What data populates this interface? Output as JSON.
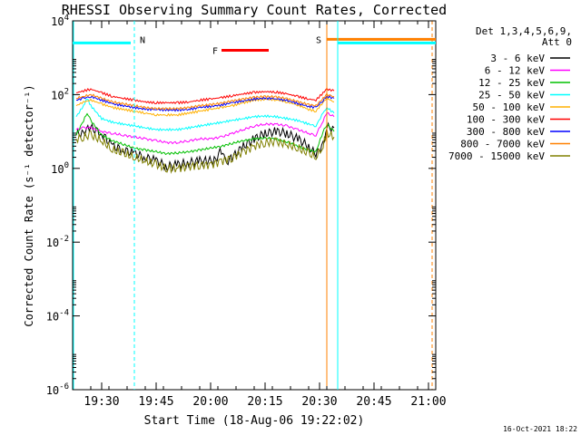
{
  "chart_data": {
    "type": "line",
    "title": "RHESSI Observing Summary Count Rates, Corrected",
    "xlabel": "Start Time (18-Aug-06 19:22:02)",
    "ylabel": "Corrected Count Rate (s⁻¹ detector⁻¹)",
    "y_scale": "log",
    "ylim_log10": [
      -6,
      4
    ],
    "y_ticks": [
      {
        "exp": 4,
        "base": "10",
        "sup": "4"
      },
      {
        "exp": 2,
        "base": "10",
        "sup": "2"
      },
      {
        "exp": 0,
        "base": "10",
        "sup": "0"
      },
      {
        "exp": -2,
        "base": "10",
        "sup": "-2"
      },
      {
        "exp": -4,
        "base": "10",
        "sup": "-4"
      },
      {
        "exp": -6,
        "base": "10",
        "sup": "-6"
      }
    ],
    "xlim_min": [
      1162,
      1262
    ],
    "x_ticks": [
      {
        "min": 1170,
        "label": "19:30"
      },
      {
        "min": 1185,
        "label": "19:45"
      },
      {
        "min": 1200,
        "label": "20:00"
      },
      {
        "min": 1215,
        "label": "20:15"
      },
      {
        "min": 1230,
        "label": "20:30"
      },
      {
        "min": 1245,
        "label": "20:45"
      },
      {
        "min": 1260,
        "label": "21:00"
      }
    ],
    "legend_header": [
      "Det 1,3,4,5,6,9,",
      "Att 0"
    ],
    "series": [
      {
        "name": "3 - 6 keV",
        "color": "#000000",
        "points": [
          [
            1163,
            0.9
          ],
          [
            1165,
            1.0
          ],
          [
            1167,
            1.1
          ],
          [
            1170,
            0.95
          ],
          [
            1173,
            0.6
          ],
          [
            1176,
            0.5
          ],
          [
            1179,
            0.4
          ],
          [
            1182,
            0.3
          ],
          [
            1185,
            0.2
          ],
          [
            1188,
            0.05
          ],
          [
            1191,
            0.1
          ],
          [
            1194,
            0.15
          ],
          [
            1197,
            0.2
          ],
          [
            1199,
            0.2
          ],
          [
            1201,
            0.2
          ],
          [
            1203,
            0.5
          ],
          [
            1204,
            0.15
          ],
          [
            1206,
            0.3
          ],
          [
            1209,
            0.6
          ],
          [
            1212,
            0.8
          ],
          [
            1215,
            0.95
          ],
          [
            1218,
            1.0
          ],
          [
            1221,
            0.95
          ],
          [
            1224,
            0.8
          ],
          [
            1227,
            0.6
          ],
          [
            1229,
            0.35
          ],
          [
            1231,
            0.7
          ],
          [
            1232,
            1.1
          ],
          [
            1234,
            1.1
          ]
        ]
      },
      {
        "name": "6 - 12 keV",
        "color": "#ff00ff",
        "points": [
          [
            1163,
            1.05
          ],
          [
            1165,
            1.1
          ],
          [
            1167,
            1.1
          ],
          [
            1170,
            1.0
          ],
          [
            1173,
            0.95
          ],
          [
            1176,
            0.9
          ],
          [
            1179,
            0.85
          ],
          [
            1182,
            0.8
          ],
          [
            1185,
            0.75
          ],
          [
            1188,
            0.7
          ],
          [
            1191,
            0.7
          ],
          [
            1194,
            0.75
          ],
          [
            1197,
            0.8
          ],
          [
            1200,
            0.8
          ],
          [
            1203,
            0.85
          ],
          [
            1206,
            0.95
          ],
          [
            1209,
            1.05
          ],
          [
            1212,
            1.15
          ],
          [
            1215,
            1.2
          ],
          [
            1218,
            1.2
          ],
          [
            1221,
            1.15
          ],
          [
            1224,
            1.05
          ],
          [
            1227,
            0.95
          ],
          [
            1229,
            0.9
          ],
          [
            1231,
            1.3
          ],
          [
            1232,
            1.5
          ],
          [
            1234,
            1.4
          ]
        ]
      },
      {
        "name": "12 - 25 keV",
        "color": "#00c000",
        "points": [
          [
            1163,
            0.9
          ],
          [
            1165,
            1.3
          ],
          [
            1166,
            1.5
          ],
          [
            1167,
            1.3
          ],
          [
            1170,
            0.9
          ],
          [
            1173,
            0.75
          ],
          [
            1176,
            0.65
          ],
          [
            1179,
            0.55
          ],
          [
            1182,
            0.5
          ],
          [
            1185,
            0.45
          ],
          [
            1188,
            0.4
          ],
          [
            1191,
            0.42
          ],
          [
            1194,
            0.45
          ],
          [
            1197,
            0.5
          ],
          [
            1200,
            0.55
          ],
          [
            1203,
            0.6
          ],
          [
            1206,
            0.68
          ],
          [
            1209,
            0.75
          ],
          [
            1212,
            0.8
          ],
          [
            1215,
            0.82
          ],
          [
            1218,
            0.8
          ],
          [
            1221,
            0.72
          ],
          [
            1224,
            0.6
          ],
          [
            1227,
            0.5
          ],
          [
            1229,
            0.45
          ],
          [
            1231,
            1.0
          ],
          [
            1232,
            1.2
          ],
          [
            1234,
            1.0
          ]
        ]
      },
      {
        "name": "25 - 50 keV",
        "color": "#00ffff",
        "points": [
          [
            1163,
            1.4
          ],
          [
            1165,
            1.7
          ],
          [
            1166,
            1.9
          ],
          [
            1167,
            1.7
          ],
          [
            1170,
            1.35
          ],
          [
            1173,
            1.25
          ],
          [
            1176,
            1.2
          ],
          [
            1179,
            1.15
          ],
          [
            1182,
            1.1
          ],
          [
            1185,
            1.05
          ],
          [
            1188,
            1.05
          ],
          [
            1191,
            1.05
          ],
          [
            1194,
            1.1
          ],
          [
            1197,
            1.15
          ],
          [
            1200,
            1.2
          ],
          [
            1203,
            1.25
          ],
          [
            1206,
            1.3
          ],
          [
            1209,
            1.35
          ],
          [
            1212,
            1.4
          ],
          [
            1215,
            1.42
          ],
          [
            1218,
            1.4
          ],
          [
            1221,
            1.35
          ],
          [
            1224,
            1.3
          ],
          [
            1227,
            1.2
          ],
          [
            1229,
            1.15
          ],
          [
            1231,
            1.5
          ],
          [
            1232,
            1.65
          ],
          [
            1234,
            1.5
          ]
        ]
      },
      {
        "name": "50 - 100 keV",
        "color": "#ffb000",
        "points": [
          [
            1163,
            1.7
          ],
          [
            1165,
            1.8
          ],
          [
            1167,
            1.85
          ],
          [
            1170,
            1.75
          ],
          [
            1173,
            1.65
          ],
          [
            1176,
            1.6
          ],
          [
            1179,
            1.55
          ],
          [
            1182,
            1.5
          ],
          [
            1185,
            1.45
          ],
          [
            1188,
            1.45
          ],
          [
            1191,
            1.45
          ],
          [
            1194,
            1.5
          ],
          [
            1197,
            1.55
          ],
          [
            1200,
            1.6
          ],
          [
            1203,
            1.65
          ],
          [
            1206,
            1.7
          ],
          [
            1209,
            1.78
          ],
          [
            1212,
            1.85
          ],
          [
            1215,
            1.88
          ],
          [
            1218,
            1.86
          ],
          [
            1221,
            1.8
          ],
          [
            1224,
            1.72
          ],
          [
            1227,
            1.6
          ],
          [
            1229,
            1.55
          ],
          [
            1231,
            1.8
          ],
          [
            1232,
            1.9
          ],
          [
            1234,
            1.8
          ]
        ]
      },
      {
        "name": "100 - 300 keV",
        "color": "#ff0000",
        "points": [
          [
            1163,
            2.05
          ],
          [
            1165,
            2.1
          ],
          [
            1167,
            2.15
          ],
          [
            1170,
            2.05
          ],
          [
            1173,
            1.95
          ],
          [
            1176,
            1.9
          ],
          [
            1179,
            1.85
          ],
          [
            1182,
            1.8
          ],
          [
            1185,
            1.78
          ],
          [
            1188,
            1.78
          ],
          [
            1191,
            1.78
          ],
          [
            1194,
            1.8
          ],
          [
            1197,
            1.85
          ],
          [
            1200,
            1.88
          ],
          [
            1203,
            1.92
          ],
          [
            1206,
            1.97
          ],
          [
            1209,
            2.02
          ],
          [
            1212,
            2.06
          ],
          [
            1215,
            2.08
          ],
          [
            1218,
            2.07
          ],
          [
            1221,
            2.02
          ],
          [
            1224,
            1.95
          ],
          [
            1227,
            1.88
          ],
          [
            1229,
            1.85
          ],
          [
            1231,
            2.05
          ],
          [
            1232,
            2.15
          ],
          [
            1234,
            2.1
          ]
        ]
      },
      {
        "name": "300 - 800 keV",
        "color": "#0000ff",
        "points": [
          [
            1163,
            1.85
          ],
          [
            1165,
            1.9
          ],
          [
            1167,
            1.95
          ],
          [
            1170,
            1.85
          ],
          [
            1173,
            1.75
          ],
          [
            1176,
            1.7
          ],
          [
            1179,
            1.65
          ],
          [
            1182,
            1.6
          ],
          [
            1185,
            1.6
          ],
          [
            1188,
            1.58
          ],
          [
            1191,
            1.58
          ],
          [
            1194,
            1.6
          ],
          [
            1197,
            1.65
          ],
          [
            1200,
            1.68
          ],
          [
            1203,
            1.72
          ],
          [
            1206,
            1.78
          ],
          [
            1209,
            1.83
          ],
          [
            1212,
            1.88
          ],
          [
            1215,
            1.9
          ],
          [
            1218,
            1.89
          ],
          [
            1221,
            1.84
          ],
          [
            1224,
            1.76
          ],
          [
            1227,
            1.68
          ],
          [
            1229,
            1.65
          ],
          [
            1231,
            1.85
          ],
          [
            1232,
            1.95
          ],
          [
            1234,
            1.9
          ]
        ]
      },
      {
        "name": "800 - 7000 keV",
        "color": "#ff8000",
        "points": [
          [
            1163,
            1.9
          ],
          [
            1165,
            1.95
          ],
          [
            1167,
            2.0
          ],
          [
            1170,
            1.9
          ],
          [
            1173,
            1.8
          ],
          [
            1176,
            1.75
          ],
          [
            1179,
            1.7
          ],
          [
            1182,
            1.65
          ],
          [
            1185,
            1.62
          ],
          [
            1188,
            1.62
          ],
          [
            1191,
            1.62
          ],
          [
            1194,
            1.65
          ],
          [
            1197,
            1.7
          ],
          [
            1200,
            1.73
          ],
          [
            1203,
            1.77
          ],
          [
            1206,
            1.83
          ],
          [
            1209,
            1.88
          ],
          [
            1212,
            1.93
          ],
          [
            1215,
            1.95
          ],
          [
            1218,
            1.94
          ],
          [
            1221,
            1.89
          ],
          [
            1224,
            1.81
          ],
          [
            1227,
            1.73
          ],
          [
            1229,
            1.7
          ],
          [
            1231,
            1.9
          ],
          [
            1232,
            2.0
          ],
          [
            1234,
            1.95
          ]
        ]
      },
      {
        "name": "7000 - 15000 keV",
        "color": "#808000",
        "points": [
          [
            1163,
            0.8
          ],
          [
            1165,
            0.85
          ],
          [
            1167,
            0.9
          ],
          [
            1170,
            0.75
          ],
          [
            1173,
            0.5
          ],
          [
            1176,
            0.4
          ],
          [
            1179,
            0.3
          ],
          [
            1182,
            0.2
          ],
          [
            1185,
            0.1
          ],
          [
            1188,
            0.0
          ],
          [
            1191,
            0.0
          ],
          [
            1194,
            0.05
          ],
          [
            1197,
            0.1
          ],
          [
            1200,
            0.1
          ],
          [
            1203,
            0.2
          ],
          [
            1206,
            0.3
          ],
          [
            1209,
            0.45
          ],
          [
            1212,
            0.6
          ],
          [
            1215,
            0.7
          ],
          [
            1218,
            0.72
          ],
          [
            1221,
            0.65
          ],
          [
            1224,
            0.55
          ],
          [
            1227,
            0.4
          ],
          [
            1229,
            0.3
          ],
          [
            1231,
            0.6
          ],
          [
            1232,
            0.95
          ],
          [
            1234,
            0.85
          ]
        ]
      }
    ],
    "markers": [
      {
        "label": "N",
        "color": "#00ffff",
        "line_min": [
          1162,
          1178
        ],
        "y_log": 3.4,
        "dashed_at_min": 1179
      },
      {
        "label": "F",
        "color": "#ff0000",
        "line_min": [
          1203,
          1216
        ],
        "y_log": 3.2
      },
      {
        "label": "S",
        "color": "#ff8000",
        "line_min": [
          1232,
          1262
        ],
        "y_log": 3.5,
        "solid_at_min": 1232,
        "dashed_at_min": 1261
      },
      {
        "label": "",
        "color": "#00ffff",
        "line_min": [
          1235,
          1262
        ],
        "y_log": 3.4,
        "solid_at_min": 1235
      }
    ],
    "grid": false
  },
  "footer": {
    "date": "16-Oct-2021 18:22"
  }
}
